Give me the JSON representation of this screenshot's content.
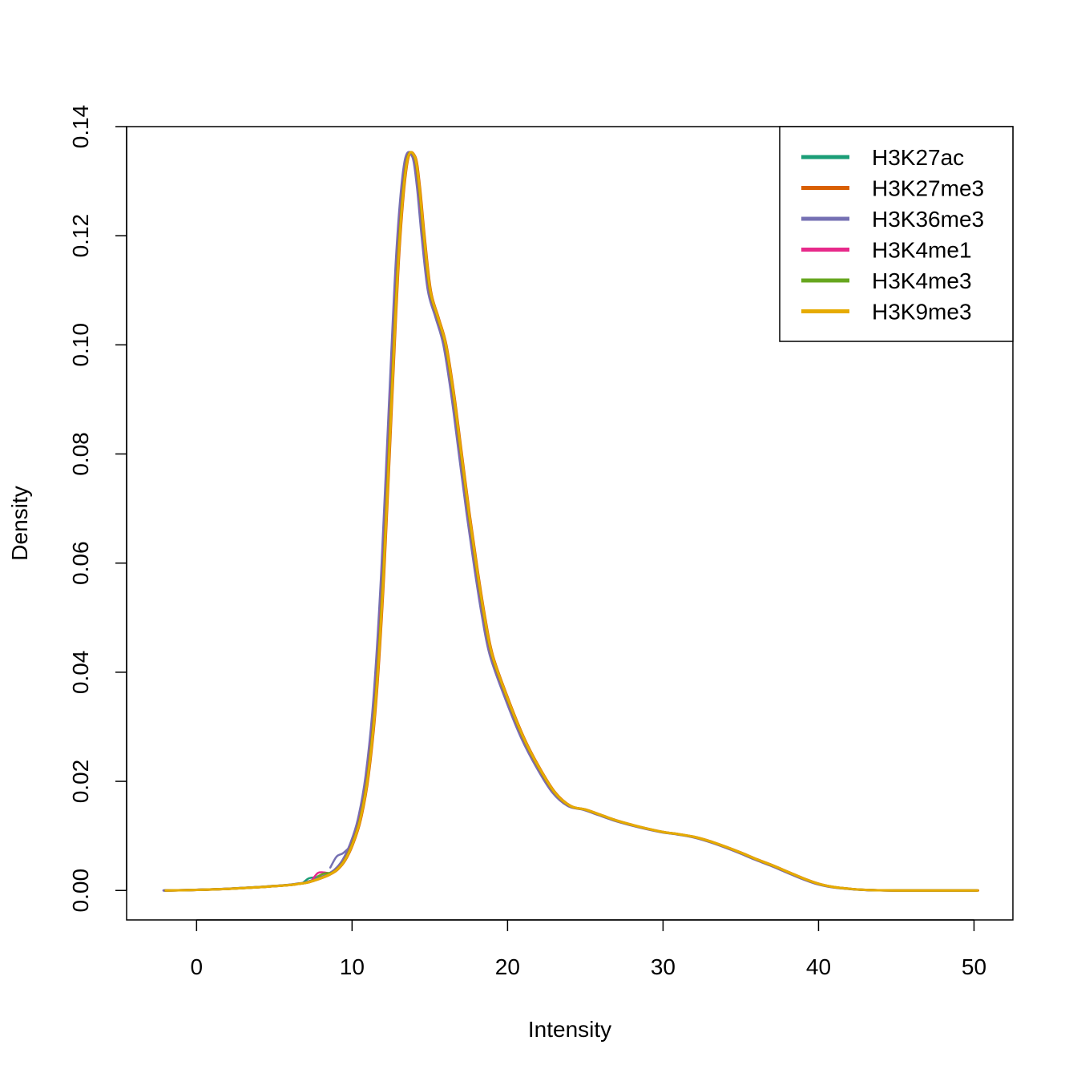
{
  "chart_data": {
    "type": "line",
    "title": "",
    "xlabel": "Intensity",
    "ylabel": "Density",
    "xlim": [
      -4.5,
      52.5
    ],
    "ylim": [
      -0.0054,
      0.14
    ],
    "x_ticks": [
      0,
      10,
      20,
      30,
      40,
      50
    ],
    "x_tick_labels": [
      "0",
      "10",
      "20",
      "30",
      "40",
      "50"
    ],
    "y_ticks": [
      0.0,
      0.02,
      0.04,
      0.06,
      0.08,
      0.1,
      0.12,
      0.14
    ],
    "y_tick_labels": [
      "0.00",
      "0.02",
      "0.04",
      "0.06",
      "0.08",
      "0.10",
      "0.12",
      "0.14"
    ],
    "grid": false,
    "legend_position": "top-right",
    "base_curve": {
      "x": [
        -2,
        0,
        2,
        4,
        5,
        6,
        6.5,
        7,
        7.5,
        8,
        8.5,
        9,
        9.5,
        10,
        10.5,
        11,
        11.5,
        12,
        12.5,
        13,
        13.5,
        14,
        14.3,
        14.6,
        15,
        15.5,
        16,
        16.5,
        17,
        17.5,
        18,
        18.5,
        19,
        20,
        21,
        22,
        23,
        24,
        25,
        26,
        27,
        28,
        29,
        30,
        31,
        32,
        33,
        34,
        35,
        36,
        37,
        38,
        39,
        40,
        41,
        42,
        43,
        44,
        45,
        46,
        48,
        50.2
      ],
      "y": [
        0.0,
        0.0001,
        0.0003,
        0.0006,
        0.0008,
        0.001,
        0.0012,
        0.0014,
        0.0018,
        0.0023,
        0.0029,
        0.0038,
        0.0055,
        0.0085,
        0.013,
        0.021,
        0.035,
        0.058,
        0.089,
        0.118,
        0.1335,
        0.1345,
        0.129,
        0.12,
        0.11,
        0.105,
        0.1,
        0.091,
        0.08,
        0.069,
        0.059,
        0.05,
        0.043,
        0.035,
        0.028,
        0.0225,
        0.018,
        0.0155,
        0.0148,
        0.0138,
        0.0128,
        0.012,
        0.0113,
        0.0107,
        0.0103,
        0.0098,
        0.009,
        0.008,
        0.0069,
        0.0057,
        0.0046,
        0.0034,
        0.0022,
        0.0012,
        0.0006,
        0.0003,
        0.0001,
        3e-05,
        0.0,
        0.0,
        0.0,
        0.0
      ]
    },
    "series": [
      {
        "name": "H3K27ac",
        "color": "#1B9E77",
        "x_shift": -0.04,
        "bump": {
          "x": [
            6.8,
            7.2,
            7.6,
            8.0
          ],
          "y": [
            0.0013,
            0.0022,
            0.0024,
            0.0025
          ]
        }
      },
      {
        "name": "H3K27me3",
        "color": "#D95F02",
        "x_shift": 0.06,
        "bump": null
      },
      {
        "name": "H3K36me3",
        "color": "#7570B3",
        "x_shift": -0.12,
        "bump": {
          "x": [
            8.6,
            9.0,
            9.4,
            9.8
          ],
          "y": [
            0.0042,
            0.0062,
            0.0068,
            0.0078
          ]
        }
      },
      {
        "name": "H3K4me1",
        "color": "#E7298A",
        "x_shift": -0.02,
        "bump": {
          "x": [
            7.4,
            7.8,
            8.2,
            8.6
          ],
          "y": [
            0.0018,
            0.0032,
            0.0033,
            0.0031
          ]
        }
      },
      {
        "name": "H3K4me3",
        "color": "#66A61E",
        "x_shift": 0.0,
        "bump": {
          "x": [
            7.8,
            8.2,
            8.6
          ],
          "y": [
            0.0026,
            0.0031,
            0.0032
          ]
        }
      },
      {
        "name": "H3K9me3",
        "color": "#E6AB02",
        "x_shift": 0.03,
        "bump": null
      }
    ]
  }
}
